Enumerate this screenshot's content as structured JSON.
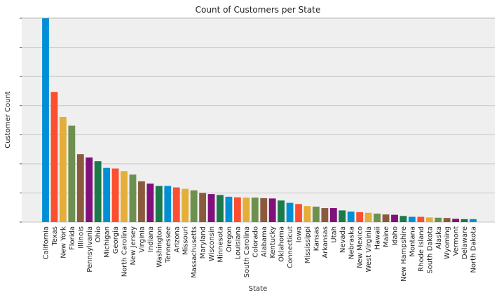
{
  "chart_data": {
    "type": "bar",
    "title": "Count of Customers per State",
    "xlabel": "State",
    "ylabel": "Customer Count",
    "ylim": [
      0,
      7.05
    ],
    "ytick_values": [
      0,
      1,
      2,
      3,
      4,
      5,
      6,
      7
    ],
    "grid": "horizontal",
    "legend": "none",
    "colors": [
      "#008fd5",
      "#fc4f30",
      "#e5ae38",
      "#6d904f",
      "#8b5a3c",
      "#810f7c",
      "#1b7a4a"
    ],
    "plot_background": "#efefef",
    "grid_color": "#c6c6c6",
    "categories": [
      "California",
      "Texas",
      "New York",
      "Florida",
      "Illinois",
      "Pennsylvania",
      "Ohio",
      "Michigan",
      "Georgia",
      "North Carolina",
      "New Jersey",
      "Virginia",
      "Indiana",
      "Washington",
      "Tennessee",
      "Arizona",
      "Missouri",
      "Massachusetts",
      "Maryland",
      "Wisconsin",
      "Minnesota",
      "Oregon",
      "Louisiana",
      "South Carolina",
      "Colorado",
      "Alabama",
      "Kentucky",
      "Oklahoma",
      "Connecticut",
      "Iowa",
      "Mississippi",
      "Kansas",
      "Arkansas",
      "Utah",
      "Nevada",
      "Nebraska",
      "New Mexico",
      "West Virginia",
      "Hawaii",
      "Maine",
      "Idaho",
      "New Hampshire",
      "Montana",
      "Rhode Island",
      "South Dakota",
      "Alaska",
      "Wyoming",
      "Vermont",
      "Delaware",
      "North Dakota"
    ],
    "values": [
      7.0,
      4.47,
      3.61,
      3.31,
      2.33,
      2.22,
      2.09,
      1.86,
      1.84,
      1.75,
      1.63,
      1.4,
      1.32,
      1.24,
      1.24,
      1.19,
      1.14,
      1.09,
      1.0,
      0.96,
      0.93,
      0.87,
      0.85,
      0.84,
      0.84,
      0.82,
      0.81,
      0.74,
      0.66,
      0.62,
      0.55,
      0.53,
      0.48,
      0.48,
      0.4,
      0.36,
      0.34,
      0.32,
      0.29,
      0.26,
      0.25,
      0.21,
      0.18,
      0.18,
      0.16,
      0.15,
      0.14,
      0.11,
      0.1,
      0.1
    ]
  }
}
